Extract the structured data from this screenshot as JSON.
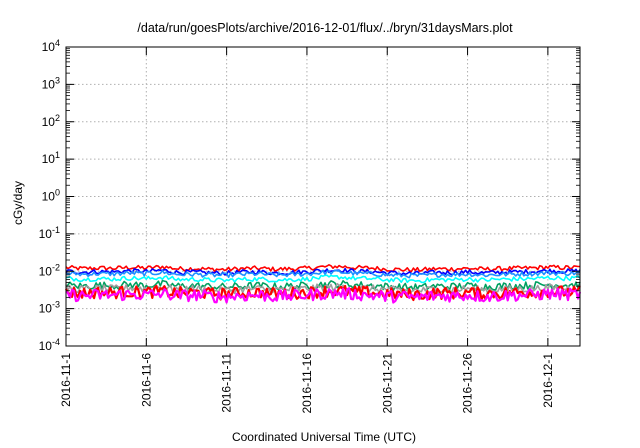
{
  "chart_data": {
    "type": "line",
    "title": "/data/run/goesPlots/archive/2016-12-01/flux/../bryn/31daysMars.plot",
    "xlabel": "Coordinated Universal Time (UTC)",
    "ylabel": "cGy/day",
    "yscale": "log",
    "ylim": [
      0.0001,
      10000
    ],
    "xlim": [
      "2016-11-01",
      "2016-12-03"
    ],
    "grid": true,
    "x_ticks": [
      "2016-11-1",
      "2016-11-6",
      "2016-11-11",
      "2016-11-16",
      "2016-11-21",
      "2016-11-26",
      "2016-12-1"
    ],
    "y_ticks": [
      {
        "base": "10",
        "exp": "-4"
      },
      {
        "base": "10",
        "exp": "-3"
      },
      {
        "base": "10",
        "exp": "-2"
      },
      {
        "base": "10",
        "exp": "-1"
      },
      {
        "base": "10",
        "exp": "0"
      },
      {
        "base": "10",
        "exp": "1"
      },
      {
        "base": "10",
        "exp": "2"
      },
      {
        "base": "10",
        "exp": "3"
      },
      {
        "base": "10",
        "exp": "4"
      }
    ],
    "dates": [
      "2016-11-01",
      "2016-11-02",
      "2016-11-03",
      "2016-11-04",
      "2016-11-05",
      "2016-11-06",
      "2016-11-07",
      "2016-11-08",
      "2016-11-09",
      "2016-11-10",
      "2016-11-11",
      "2016-11-12",
      "2016-11-13",
      "2016-11-14",
      "2016-11-15",
      "2016-11-16",
      "2016-11-17",
      "2016-11-18",
      "2016-11-19",
      "2016-11-20",
      "2016-11-21",
      "2016-11-22",
      "2016-11-23",
      "2016-11-24",
      "2016-11-25",
      "2016-11-26",
      "2016-11-27",
      "2016-11-28",
      "2016-11-29",
      "2016-11-30",
      "2016-12-01",
      "2016-12-02",
      "2016-12-03"
    ],
    "series": [
      {
        "color": "#ff0000",
        "values": [
          0.0125,
          0.0118,
          0.0122,
          0.012,
          0.0127,
          0.0122,
          0.0132,
          0.0116,
          0.0119,
          0.0113,
          0.0111,
          0.0118,
          0.012,
          0.0113,
          0.0116,
          0.012,
          0.0131,
          0.0135,
          0.0125,
          0.0122,
          0.0114,
          0.011,
          0.0109,
          0.0116,
          0.0115,
          0.0119,
          0.0113,
          0.0117,
          0.012,
          0.0122,
          0.0129,
          0.0125,
          0.0127
        ]
      },
      {
        "color": "#0000ff",
        "values": [
          0.01,
          0.0095,
          0.0098,
          0.0097,
          0.0103,
          0.0098,
          0.0106,
          0.0093,
          0.0095,
          0.009,
          0.0089,
          0.0095,
          0.0097,
          0.009,
          0.0093,
          0.0097,
          0.0106,
          0.0109,
          0.01,
          0.0098,
          0.0091,
          0.0088,
          0.0087,
          0.0093,
          0.0092,
          0.0096,
          0.009,
          0.0094,
          0.0096,
          0.0098,
          0.0104,
          0.01,
          0.0102
        ]
      },
      {
        "color": "#1e90ff",
        "values": [
          0.0088,
          0.0083,
          0.0086,
          0.0085,
          0.009,
          0.0086,
          0.0093,
          0.0082,
          0.0083,
          0.0079,
          0.0078,
          0.0083,
          0.0085,
          0.0079,
          0.0081,
          0.0085,
          0.0093,
          0.0095,
          0.0088,
          0.0086,
          0.008,
          0.0077,
          0.0076,
          0.0081,
          0.0081,
          0.0084,
          0.0079,
          0.0082,
          0.0084,
          0.0086,
          0.0091,
          0.0088,
          0.0089
        ]
      },
      {
        "color": "#00ffff",
        "values": [
          0.0065,
          0.0061,
          0.0063,
          0.0062,
          0.0066,
          0.0063,
          0.0069,
          0.006,
          0.0061,
          0.0058,
          0.0057,
          0.0061,
          0.0062,
          0.0058,
          0.006,
          0.0062,
          0.0068,
          0.007,
          0.0065,
          0.0063,
          0.0059,
          0.0057,
          0.0056,
          0.006,
          0.0059,
          0.0062,
          0.0058,
          0.0061,
          0.0062,
          0.0063,
          0.0067,
          0.0065,
          0.0066
        ]
      },
      {
        "color": "#00a060",
        "values": [
          0.0043,
          0.004,
          0.0042,
          0.0041,
          0.0044,
          0.0042,
          0.0045,
          0.004,
          0.0041,
          0.0039,
          0.0038,
          0.004,
          0.0041,
          0.0039,
          0.004,
          0.0041,
          0.0045,
          0.0046,
          0.0043,
          0.0042,
          0.0039,
          0.0038,
          0.0037,
          0.004,
          0.0039,
          0.0041,
          0.0039,
          0.004,
          0.0041,
          0.0042,
          0.0044,
          0.0043,
          0.0044
        ]
      },
      {
        "color": "#a0a0a0",
        "values": [
          0.0035,
          0.0033,
          0.0034,
          0.0034,
          0.0036,
          0.0034,
          0.0037,
          0.0033,
          0.0034,
          0.0032,
          0.0031,
          0.0033,
          0.0034,
          0.0032,
          0.0033,
          0.0034,
          0.0037,
          0.0038,
          0.0035,
          0.0034,
          0.0032,
          0.0031,
          0.0031,
          0.0033,
          0.0032,
          0.0034,
          0.0032,
          0.0033,
          0.0034,
          0.0034,
          0.0036,
          0.0035,
          0.0036
        ]
      },
      {
        "color": "#ff0000",
        "values": [
          0.0028,
          0.0026,
          0.0027,
          0.0027,
          0.0028,
          0.0027,
          0.0029,
          0.0026,
          0.0027,
          0.0025,
          0.0025,
          0.0026,
          0.0027,
          0.0025,
          0.0026,
          0.0027,
          0.0029,
          0.003,
          0.0028,
          0.0027,
          0.0025,
          0.0024,
          0.0024,
          0.0026,
          0.0026,
          0.0027,
          0.0025,
          0.0026,
          0.0027,
          0.0027,
          0.0029,
          0.0028,
          0.0028
        ]
      },
      {
        "color": "#ff00ff",
        "values": [
          0.0024,
          0.0022,
          0.0023,
          0.0023,
          0.0024,
          0.0023,
          0.0025,
          0.0022,
          0.0023,
          0.0021,
          0.0021,
          0.0022,
          0.0023,
          0.0021,
          0.0022,
          0.0023,
          0.0025,
          0.0026,
          0.0024,
          0.0023,
          0.0021,
          0.0021,
          0.002,
          0.0022,
          0.0022,
          0.0023,
          0.0021,
          0.0022,
          0.0023,
          0.0023,
          0.0025,
          0.0024,
          0.0024
        ]
      }
    ],
    "line_colors": {
      "grid": "#b0b0b0",
      "axis": "#000000"
    }
  }
}
